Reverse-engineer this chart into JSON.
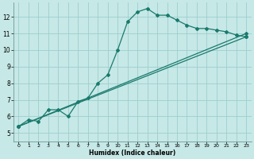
{
  "xlabel": "Humidex (Indice chaleur)",
  "xlim": [
    -0.5,
    23.5
  ],
  "ylim": [
    4.5,
    12.85
  ],
  "yticks": [
    5,
    6,
    7,
    8,
    9,
    10,
    11,
    12
  ],
  "xticks": [
    0,
    1,
    2,
    3,
    4,
    5,
    6,
    7,
    8,
    9,
    10,
    11,
    12,
    13,
    14,
    15,
    16,
    17,
    18,
    19,
    20,
    21,
    22,
    23
  ],
  "bg_color": "#c6e8e6",
  "grid_color": "#9dcece",
  "line_color": "#1a7a6e",
  "line1_x": [
    0,
    1,
    2,
    3,
    4,
    5,
    6,
    7,
    8,
    9,
    10,
    11,
    12,
    13,
    14,
    15,
    16,
    17,
    18,
    19,
    20,
    21,
    22,
    23
  ],
  "line1_y": [
    5.4,
    5.8,
    5.7,
    6.4,
    6.4,
    6.0,
    6.9,
    7.1,
    8.0,
    8.5,
    10.0,
    11.7,
    12.3,
    12.5,
    12.1,
    12.1,
    11.8,
    11.5,
    11.3,
    11.3,
    11.2,
    11.1,
    10.9,
    10.8
  ],
  "line2_x": [
    0,
    23
  ],
  "line2_y": [
    5.4,
    11.0
  ],
  "line3_x": [
    0,
    23
  ],
  "line3_y": [
    5.4,
    10.8
  ]
}
